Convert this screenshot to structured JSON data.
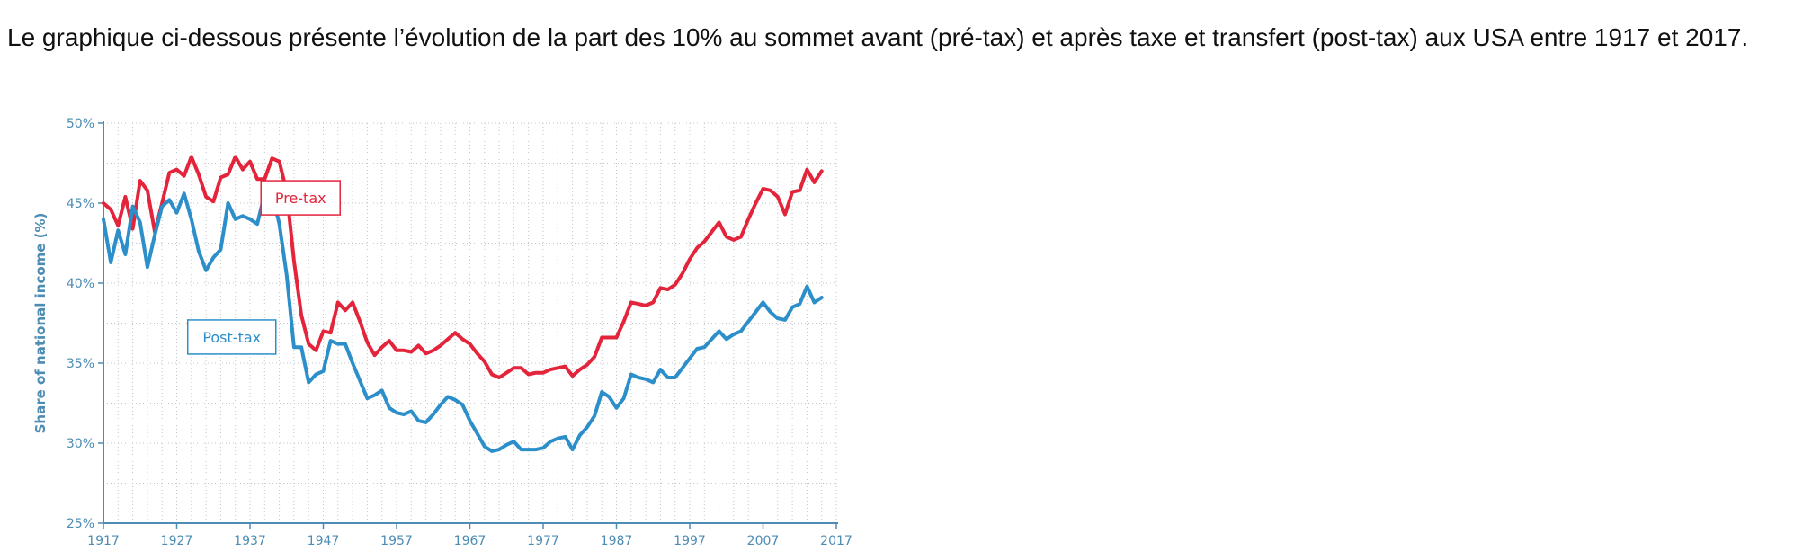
{
  "intro_text": "Le graphique ci-dessous présente l’évolution de la part des 10% au sommet avant (pré-tax) et après taxe et transfert (post-tax) aux USA entre 1917 et 2017.",
  "colors": {
    "pretax": "#e3243b",
    "posttax": "#2c8fc9",
    "axis_text": "#4d8cb3",
    "grid": "#bfc6cc"
  },
  "chart_data": {
    "type": "line",
    "title": "",
    "xlabel": "",
    "ylabel": "Share of national income (%)",
    "xlim": [
      1917,
      2017
    ],
    "ylim": [
      25,
      50
    ],
    "x_ticks": [
      1917,
      1927,
      1937,
      1947,
      1957,
      1967,
      1977,
      1987,
      1997,
      2007,
      2017
    ],
    "y_ticks": [
      25,
      30,
      35,
      40,
      45,
      50
    ],
    "y_tick_labels": [
      "25%",
      "30%",
      "35%",
      "40%",
      "45%",
      "50%"
    ],
    "grid": true,
    "series": [
      {
        "name": "Pre-tax",
        "points": [
          [
            1917,
            45.0
          ],
          [
            1918,
            44.6
          ],
          [
            1919,
            43.6
          ],
          [
            1920,
            45.4
          ],
          [
            1921,
            43.4
          ],
          [
            1922,
            46.4
          ],
          [
            1923,
            45.8
          ],
          [
            1924,
            43.2
          ],
          [
            1925,
            45.0
          ],
          [
            1926,
            46.9
          ],
          [
            1927,
            47.1
          ],
          [
            1928,
            46.7
          ],
          [
            1929,
            47.9
          ],
          [
            1930,
            46.8
          ],
          [
            1931,
            45.4
          ],
          [
            1932,
            45.1
          ],
          [
            1933,
            46.6
          ],
          [
            1934,
            46.8
          ],
          [
            1935,
            47.9
          ],
          [
            1936,
            47.1
          ],
          [
            1937,
            47.6
          ],
          [
            1938,
            46.5
          ],
          [
            1939,
            46.5
          ],
          [
            1940,
            47.8
          ],
          [
            1941,
            47.6
          ],
          [
            1942,
            45.7
          ],
          [
            1943,
            41.4
          ],
          [
            1944,
            38.0
          ],
          [
            1945,
            36.2
          ],
          [
            1946,
            35.8
          ],
          [
            1947,
            37.0
          ],
          [
            1948,
            36.9
          ],
          [
            1949,
            38.8
          ],
          [
            1950,
            38.3
          ],
          [
            1951,
            38.8
          ],
          [
            1952,
            37.6
          ],
          [
            1953,
            36.3
          ],
          [
            1954,
            35.5
          ],
          [
            1955,
            36.0
          ],
          [
            1956,
            36.4
          ],
          [
            1957,
            35.8
          ],
          [
            1958,
            35.8
          ],
          [
            1959,
            35.7
          ],
          [
            1960,
            36.1
          ],
          [
            1961,
            35.6
          ],
          [
            1962,
            35.8
          ],
          [
            1963,
            36.1
          ],
          [
            1964,
            36.5
          ],
          [
            1965,
            36.9
          ],
          [
            1966,
            36.5
          ],
          [
            1967,
            36.2
          ],
          [
            1968,
            35.6
          ],
          [
            1969,
            35.1
          ],
          [
            1970,
            34.3
          ],
          [
            1971,
            34.1
          ],
          [
            1972,
            34.4
          ],
          [
            1973,
            34.7
          ],
          [
            1974,
            34.7
          ],
          [
            1975,
            34.3
          ],
          [
            1976,
            34.4
          ],
          [
            1977,
            34.4
          ],
          [
            1978,
            34.6
          ],
          [
            1979,
            34.7
          ],
          [
            1980,
            34.8
          ],
          [
            1981,
            34.2
          ],
          [
            1982,
            34.6
          ],
          [
            1983,
            34.9
          ],
          [
            1984,
            35.4
          ],
          [
            1985,
            36.6
          ],
          [
            1986,
            36.6
          ],
          [
            1987,
            36.6
          ],
          [
            1988,
            37.6
          ],
          [
            1989,
            38.8
          ],
          [
            1990,
            38.7
          ],
          [
            1991,
            38.6
          ],
          [
            1992,
            38.8
          ],
          [
            1993,
            39.7
          ],
          [
            1994,
            39.6
          ],
          [
            1995,
            39.9
          ],
          [
            1996,
            40.6
          ],
          [
            1997,
            41.5
          ],
          [
            1998,
            42.2
          ],
          [
            1999,
            42.6
          ],
          [
            2000,
            43.2
          ],
          [
            2001,
            43.8
          ],
          [
            2002,
            42.9
          ],
          [
            2003,
            42.7
          ],
          [
            2004,
            42.9
          ],
          [
            2005,
            44.0
          ],
          [
            2006,
            45.0
          ],
          [
            2007,
            45.9
          ],
          [
            2008,
            45.8
          ],
          [
            2009,
            45.4
          ],
          [
            2010,
            44.3
          ],
          [
            2011,
            45.7
          ],
          [
            2012,
            45.8
          ],
          [
            2013,
            47.1
          ],
          [
            2014,
            46.3
          ],
          [
            2015,
            47.0
          ]
        ]
      },
      {
        "name": "Post-tax",
        "points": [
          [
            1917,
            44.0
          ],
          [
            1918,
            41.3
          ],
          [
            1919,
            43.3
          ],
          [
            1920,
            41.8
          ],
          [
            1921,
            44.8
          ],
          [
            1922,
            43.8
          ],
          [
            1923,
            41.0
          ],
          [
            1924,
            43.0
          ],
          [
            1925,
            44.8
          ],
          [
            1926,
            45.2
          ],
          [
            1927,
            44.4
          ],
          [
            1928,
            45.6
          ],
          [
            1929,
            44.0
          ],
          [
            1930,
            42.0
          ],
          [
            1931,
            40.8
          ],
          [
            1932,
            41.6
          ],
          [
            1933,
            42.1
          ],
          [
            1934,
            45.0
          ],
          [
            1935,
            44.0
          ],
          [
            1936,
            44.2
          ],
          [
            1937,
            44.0
          ],
          [
            1938,
            43.7
          ],
          [
            1939,
            45.6
          ],
          [
            1940,
            45.6
          ],
          [
            1941,
            43.7
          ],
          [
            1942,
            40.5
          ],
          [
            1943,
            36.0
          ],
          [
            1944,
            36.0
          ],
          [
            1945,
            33.8
          ],
          [
            1946,
            34.3
          ],
          [
            1947,
            34.5
          ],
          [
            1948,
            36.4
          ],
          [
            1949,
            36.2
          ],
          [
            1950,
            36.2
          ],
          [
            1951,
            35.0
          ],
          [
            1952,
            33.9
          ],
          [
            1953,
            32.8
          ],
          [
            1954,
            33.0
          ],
          [
            1955,
            33.3
          ],
          [
            1956,
            32.2
          ],
          [
            1957,
            31.9
          ],
          [
            1958,
            31.8
          ],
          [
            1959,
            32.0
          ],
          [
            1960,
            31.4
          ],
          [
            1961,
            31.3
          ],
          [
            1962,
            31.8
          ],
          [
            1963,
            32.4
          ],
          [
            1964,
            32.9
          ],
          [
            1965,
            32.7
          ],
          [
            1966,
            32.4
          ],
          [
            1967,
            31.4
          ],
          [
            1968,
            30.6
          ],
          [
            1969,
            29.8
          ],
          [
            1970,
            29.5
          ],
          [
            1971,
            29.6
          ],
          [
            1972,
            29.9
          ],
          [
            1973,
            30.1
          ],
          [
            1974,
            29.6
          ],
          [
            1975,
            29.6
          ],
          [
            1976,
            29.6
          ],
          [
            1977,
            29.7
          ],
          [
            1978,
            30.1
          ],
          [
            1979,
            30.3
          ],
          [
            1980,
            30.4
          ],
          [
            1981,
            29.6
          ],
          [
            1982,
            30.5
          ],
          [
            1983,
            31.0
          ],
          [
            1984,
            31.7
          ],
          [
            1985,
            33.2
          ],
          [
            1986,
            32.9
          ],
          [
            1987,
            32.2
          ],
          [
            1988,
            32.8
          ],
          [
            1989,
            34.3
          ],
          [
            1990,
            34.1
          ],
          [
            1991,
            34.0
          ],
          [
            1992,
            33.8
          ],
          [
            1993,
            34.6
          ],
          [
            1994,
            34.1
          ],
          [
            1995,
            34.1
          ],
          [
            1996,
            34.7
          ],
          [
            1997,
            35.3
          ],
          [
            1998,
            35.9
          ],
          [
            1999,
            36.0
          ],
          [
            2000,
            36.5
          ],
          [
            2001,
            37.0
          ],
          [
            2002,
            36.5
          ],
          [
            2003,
            36.8
          ],
          [
            2004,
            37.0
          ],
          [
            2005,
            37.6
          ],
          [
            2006,
            38.2
          ],
          [
            2007,
            38.8
          ],
          [
            2008,
            38.2
          ],
          [
            2009,
            37.8
          ],
          [
            2010,
            37.7
          ],
          [
            2011,
            38.5
          ],
          [
            2012,
            38.7
          ],
          [
            2013,
            39.8
          ],
          [
            2014,
            38.8
          ],
          [
            2015,
            39.1
          ]
        ]
      }
    ],
    "annotations": [
      {
        "text": "Pre-tax",
        "series": "Pre-tax"
      },
      {
        "text": "Post-tax",
        "series": "Post-tax"
      }
    ]
  }
}
